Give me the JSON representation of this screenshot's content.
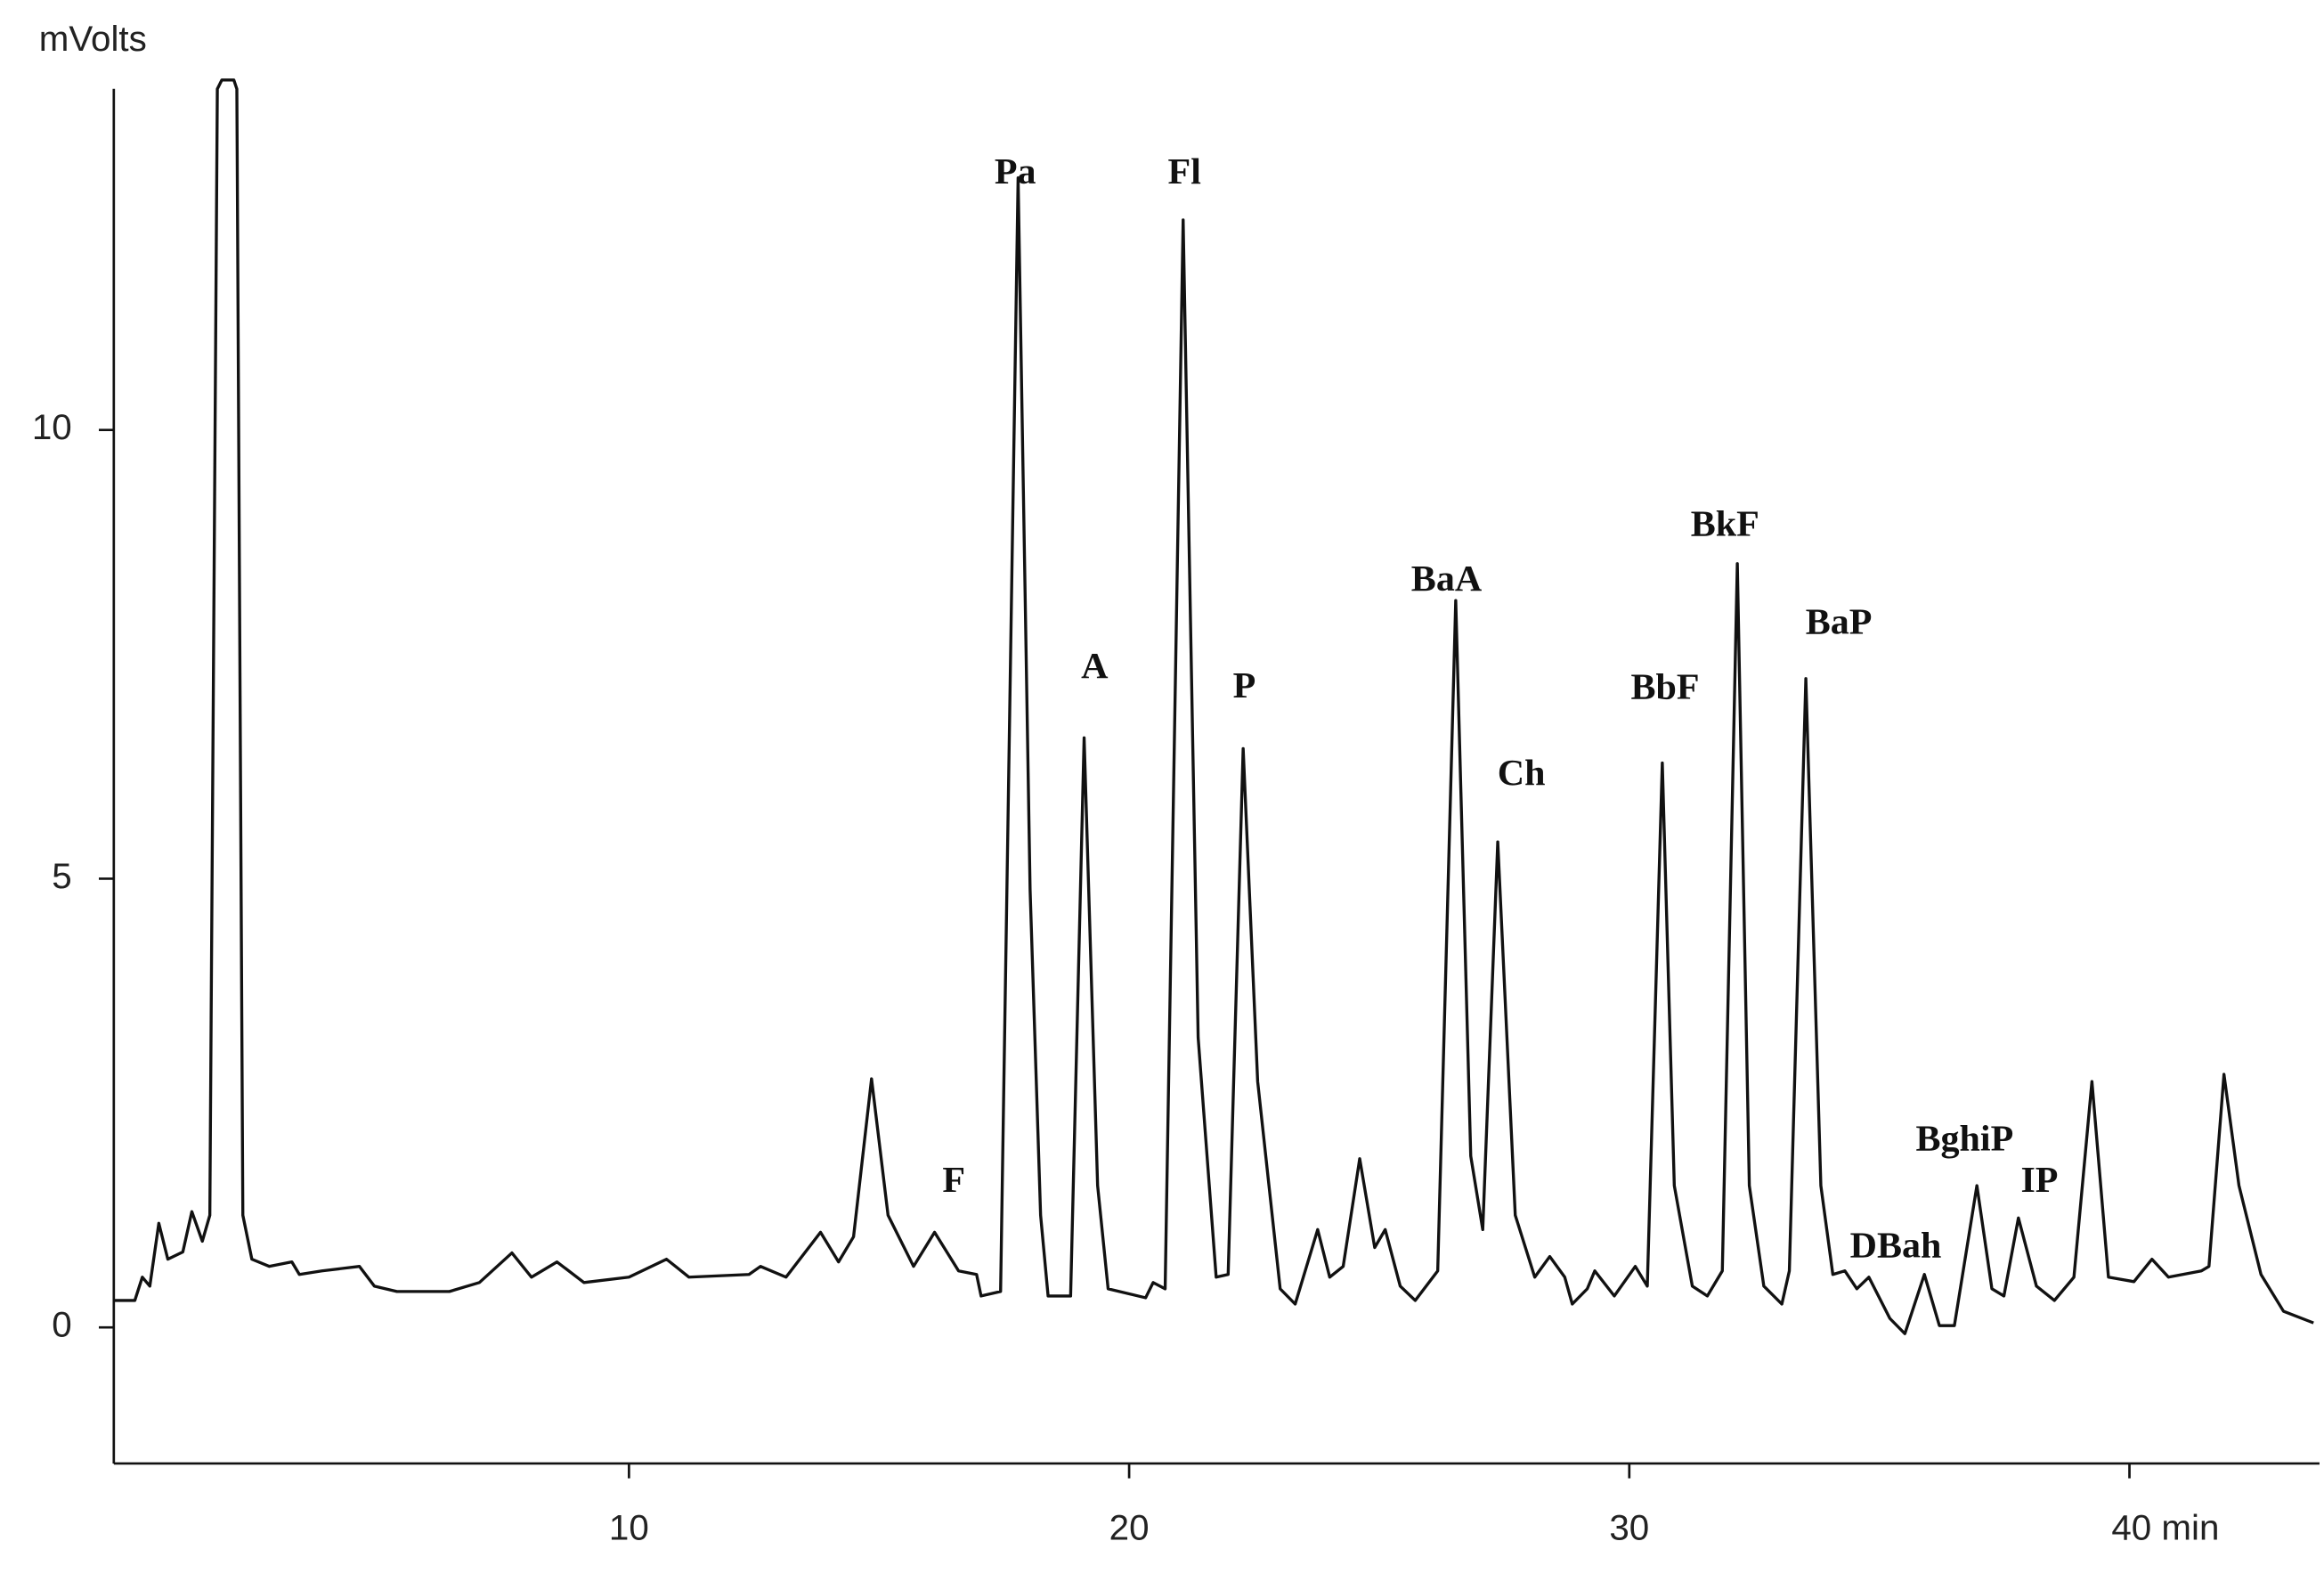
{
  "chart_data": {
    "type": "line",
    "y_label": "mVolts",
    "color": "#111111",
    "xlim": [
      -0.3,
      43.8
    ],
    "ylim": [
      -1.5,
      13.9
    ],
    "xticks": [
      10,
      20,
      30,
      {
        "value": 40,
        "label": "40 min"
      }
    ],
    "yticks": [
      0,
      5,
      10
    ],
    "annotations": [
      "F",
      "Pa",
      "A",
      "Fl",
      "P",
      "BaA",
      "Ch",
      "BbF",
      "BkF",
      "BaP",
      "DBah",
      "BghiP",
      "IP"
    ],
    "x": [
      -0.3,
      0.12,
      0.27,
      0.42,
      0.6,
      0.78,
      1.08,
      1.26,
      1.47,
      1.62,
      1.77,
      1.86,
      2.1,
      2.16,
      2.28,
      2.46,
      2.81,
      3.26,
      3.41,
      3.86,
      4.61,
      4.91,
      5.36,
      6.41,
      7.01,
      7.66,
      8.05,
      8.56,
      9.1,
      10.0,
      10.75,
      11.2,
      12.4,
      12.63,
      13.14,
      13.83,
      14.19,
      14.49,
      14.85,
      15.18,
      15.69,
      16.11,
      16.59,
      16.95,
      17.04,
      17.43,
      17.78,
      18.02,
      18.23,
      18.38,
      18.83,
      19.1,
      19.37,
      19.58,
      20.33,
      20.48,
      20.72,
      21.08,
      21.38,
      21.74,
      21.98,
      22.28,
      22.57,
      23.02,
      23.32,
      23.77,
      24.01,
      24.28,
      24.61,
      24.91,
      25.12,
      25.42,
      25.72,
      26.17,
      26.53,
      26.83,
      27.07,
      27.37,
      27.72,
      28.11,
      28.41,
      28.71,
      28.86,
      29.16,
      29.31,
      29.7,
      30.12,
      30.36,
      30.66,
      30.9,
      31.26,
      31.56,
      31.86,
      32.16,
      32.4,
      32.69,
      33.05,
      33.2,
      33.53,
      33.83,
      34.07,
      34.31,
      34.55,
      34.79,
      35.21,
      35.51,
      35.9,
      36.2,
      36.5,
      36.95,
      37.25,
      37.49,
      37.78,
      38.14,
      38.5,
      38.89,
      39.25,
      39.58,
      40.09,
      40.45,
      40.78,
      41.44,
      41.59,
      41.89,
      42.19,
      42.63,
      43.08,
      43.68
    ],
    "values": [
      0.3,
      0.3,
      0.56,
      0.46,
      1.16,
      0.76,
      0.84,
      1.29,
      0.96,
      1.25,
      13.8,
      13.9,
      13.9,
      13.8,
      1.25,
      0.76,
      0.68,
      0.73,
      0.59,
      0.63,
      0.68,
      0.46,
      0.4,
      0.4,
      0.5,
      0.83,
      0.56,
      0.73,
      0.5,
      0.56,
      0.76,
      0.56,
      0.59,
      0.68,
      0.56,
      1.06,
      0.73,
      1.01,
      2.77,
      1.25,
      0.68,
      1.06,
      0.63,
      0.59,
      0.35,
      0.4,
      12.81,
      4.88,
      1.25,
      0.35,
      0.35,
      6.57,
      1.58,
      0.43,
      0.33,
      0.5,
      0.43,
      12.34,
      3.23,
      0.56,
      0.59,
      6.45,
      2.74,
      0.43,
      0.26,
      1.09,
      0.56,
      0.68,
      1.88,
      0.89,
      1.09,
      0.46,
      0.3,
      0.63,
      8.1,
      1.91,
      1.09,
      5.41,
      1.25,
      0.56,
      0.79,
      0.56,
      0.26,
      0.43,
      0.63,
      0.35,
      0.68,
      0.46,
      6.29,
      1.58,
      0.46,
      0.35,
      0.63,
      8.51,
      1.58,
      0.46,
      0.26,
      0.63,
      7.23,
      1.58,
      0.59,
      0.63,
      0.43,
      0.56,
      0.1,
      -0.07,
      0.59,
      0.02,
      0.02,
      1.58,
      0.43,
      0.35,
      1.22,
      0.46,
      0.3,
      0.56,
      2.74,
      0.56,
      0.51,
      0.76,
      0.56,
      0.63,
      0.68,
      2.82,
      1.58,
      0.59,
      0.18,
      0.05
    ]
  }
}
